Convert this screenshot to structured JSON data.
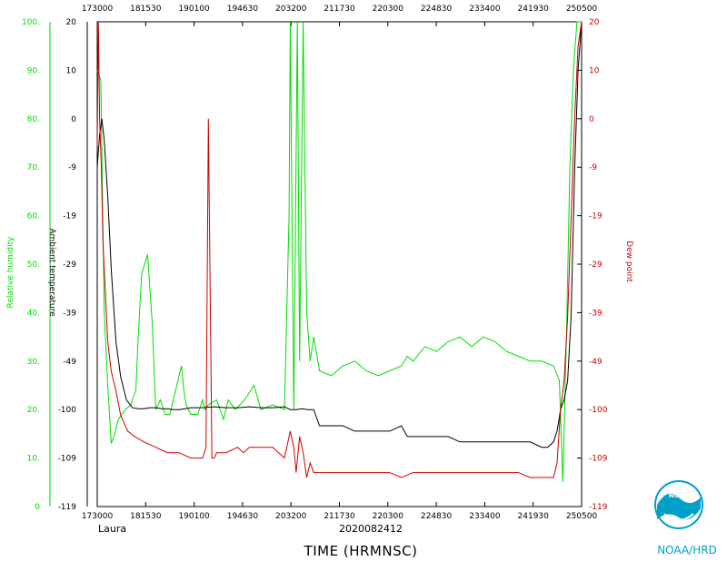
{
  "chart_data": {
    "type": "line",
    "xlabel": "TIME (HRMNSC)",
    "date_label": "2020082412",
    "storm_name": "Laura",
    "credit": "NOAA/HRD",
    "x_ticks": [
      "173000",
      "181530",
      "190100",
      "194630",
      "203200",
      "211730",
      "220300",
      "224830",
      "233400",
      "241930",
      "250500"
    ],
    "x_range_seconds": [
      0,
      41400
    ],
    "y_axes": {
      "relative_humidity": {
        "label": "Relative humidity",
        "color": "#00dd00",
        "ticks": [
          "100.",
          "90.",
          "80.",
          "70.",
          "60.",
          "50.",
          "40.",
          "30.",
          "20.",
          "10.",
          "0"
        ]
      },
      "ambient_temperature": {
        "label": "Ambient temperature",
        "color": "#000000",
        "ticks": [
          "20",
          "10",
          "0",
          "-9",
          "-19",
          "-29",
          "-39",
          "-49",
          "-100",
          "-109",
          "-119"
        ]
      },
      "dew_point": {
        "label": "Dew point",
        "color": "#cc0000",
        "ticks": [
          "20",
          "10",
          "0",
          "-9",
          "-19",
          "-29",
          "-39",
          "-49",
          "-100",
          "-109",
          "-119"
        ]
      }
    },
    "series": [
      {
        "name": "Relative humidity",
        "color": "#00dd00",
        "x": [
          0,
          300,
          600,
          900,
          1200,
          1500,
          1800,
          2400,
          2900,
          3000,
          3300,
          3500,
          3800,
          4300,
          4700,
          5000,
          5400,
          5800,
          6200,
          7200,
          7400,
          7600,
          8000,
          8600,
          9000,
          9200,
          9500,
          10200,
          10800,
          11200,
          11800,
          12600,
          13400,
          14000,
          15000,
          16000,
          16400,
          16500,
          16800,
          17100,
          17300,
          17600,
          17900,
          18200,
          18500,
          19000,
          20000,
          21000,
          22000,
          23000,
          24000,
          25000,
          26000,
          26500,
          27000,
          28000,
          29000,
          30000,
          31000,
          32000,
          33000,
          34000,
          35000,
          36000,
          37000,
          38000,
          39000,
          39500,
          39800,
          40100,
          40400,
          40700,
          41000,
          41400
        ],
        "y": [
          90,
          88,
          40,
          25,
          13,
          15,
          18,
          20,
          21,
          22,
          24,
          35,
          48,
          52,
          38,
          20,
          22,
          19,
          19,
          29,
          24,
          21,
          19,
          19,
          22,
          20,
          21,
          22,
          18,
          22,
          20,
          22,
          25,
          20,
          21,
          20,
          60,
          100,
          20,
          100,
          30,
          100,
          40,
          30,
          35,
          28,
          27,
          29,
          30,
          28,
          27,
          28,
          29,
          31,
          30,
          33,
          32,
          34,
          35,
          33,
          35,
          34,
          32,
          31,
          30,
          30,
          29,
          26,
          5,
          35,
          70,
          90,
          100,
          100
        ]
      },
      {
        "name": "Ambient temperature",
        "color": "#000000",
        "x": [
          0,
          200,
          400,
          600,
          900,
          1200,
          1600,
          2000,
          2500,
          3000,
          3500,
          4000,
          4500,
          5000,
          5500,
          6000,
          6500,
          7000,
          7500,
          8000,
          9000,
          10000,
          11000,
          12000,
          13000,
          14000,
          15000,
          16000,
          16500,
          17000,
          17500,
          18000,
          18500,
          19000,
          20000,
          21000,
          22000,
          23000,
          24000,
          25000,
          26000,
          26500,
          27000,
          28000,
          29000,
          30000,
          31000,
          32000,
          33000,
          34000,
          35000,
          36000,
          37000,
          38000,
          38500,
          39000,
          39300,
          39600,
          39900,
          40200,
          40500,
          40800,
          41100,
          41400
        ],
        "y": [
          -9,
          -3,
          0,
          -4,
          -15,
          -30,
          -45,
          -65,
          -90,
          -98,
          -99,
          -99,
          -98,
          -98,
          -99,
          -99,
          -100,
          -100,
          -99,
          -98,
          -98,
          -97,
          -98,
          -98,
          -97,
          -98,
          -98,
          -97,
          -100,
          -100,
          -99,
          -100,
          -100,
          -103,
          -103,
          -103,
          -104,
          -104,
          -104,
          -104,
          -103,
          -105,
          -105,
          -105,
          -105,
          -105,
          -106,
          -106,
          -106,
          -106,
          -106,
          -106,
          -106,
          -107,
          -107,
          -106,
          -104,
          -100,
          -90,
          -70,
          -40,
          -10,
          10,
          20
        ],
        "y_scale": "temperature"
      },
      {
        "name": "Dew point",
        "color": "#cc0000",
        "x": [
          0,
          100,
          200,
          350,
          500,
          700,
          900,
          1200,
          1600,
          2000,
          2600,
          3200,
          4000,
          5000,
          6000,
          7000,
          8000,
          9000,
          9300,
          9500,
          9800,
          10000,
          10200,
          10500,
          11000,
          12000,
          12500,
          13000,
          14000,
          15000,
          16000,
          16500,
          16800,
          17000,
          17300,
          17600,
          17900,
          18200,
          18500,
          19000,
          20000,
          21000,
          22000,
          23000,
          24000,
          25000,
          26000,
          27000,
          28000,
          29000,
          30000,
          31000,
          32000,
          33000,
          34000,
          35000,
          36000,
          37000,
          38000,
          39000,
          39300,
          39600,
          39900,
          40200,
          40500,
          40800,
          41100,
          41400
        ],
        "y": [
          -5,
          20,
          0,
          -9,
          -25,
          -35,
          -45,
          -60,
          -80,
          -101,
          -104,
          -105,
          -106,
          -107,
          -108,
          -108,
          -109,
          -109,
          -107,
          0,
          -109,
          -109,
          -108,
          -108,
          -108,
          -107,
          -108,
          -107,
          -107,
          -107,
          -109,
          -104,
          -107,
          -112,
          -105,
          -108,
          -113,
          -110,
          -112,
          -112,
          -112,
          -112,
          -112,
          -112,
          -112,
          -112,
          -113,
          -112,
          -112,
          -112,
          -112,
          -112,
          -112,
          -112,
          -112,
          -112,
          -112,
          -113,
          -113,
          -113,
          -110,
          -100,
          -70,
          -40,
          -20,
          0,
          15,
          20
        ],
        "y_scale": "temperature"
      }
    ]
  }
}
